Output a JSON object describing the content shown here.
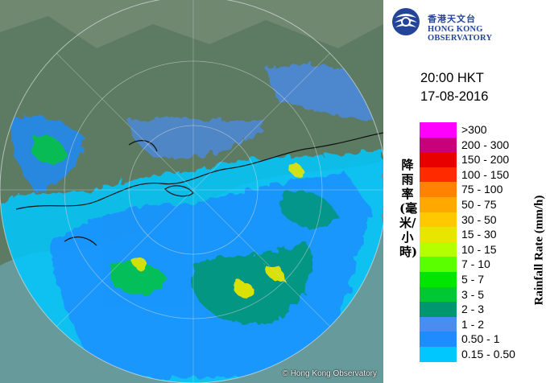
{
  "header": {
    "org_name_zh": "香港天文台",
    "org_name_en": "HONG KONG OBSERVATORY",
    "logo_icon": "hko-logo-icon"
  },
  "observation": {
    "time": "20:00 HKT",
    "date": "17-08-2016"
  },
  "map": {
    "copyright": "© Hong Kong Observatory",
    "land_color": "#5d7a63",
    "range_ring_color": "#d9dde0"
  },
  "legend": {
    "title_zh": "降雨率(毫米/小時)",
    "title_en": "Rainfall Rate (mm/h)",
    "items": [
      {
        "label": ">300",
        "color": "#ff00ff"
      },
      {
        "label": "200 - 300",
        "color": "#c8007a"
      },
      {
        "label": "150 - 200",
        "color": "#e80000"
      },
      {
        "label": "100 - 150",
        "color": "#ff2a00"
      },
      {
        "label": "75 - 100",
        "color": "#ff8200"
      },
      {
        "label": "50 - 75",
        "color": "#ffa800"
      },
      {
        "label": "30 - 50",
        "color": "#ffc800"
      },
      {
        "label": "15 - 30",
        "color": "#e6e600"
      },
      {
        "label": "10 - 15",
        "color": "#b4ff00"
      },
      {
        "label": "7 - 10",
        "color": "#5aff00"
      },
      {
        "label": "5 - 7",
        "color": "#00e600"
      },
      {
        "label": "3 - 5",
        "color": "#00c832"
      },
      {
        "label": "2 - 3",
        "color": "#00966e"
      },
      {
        "label": "1 - 2",
        "color": "#4a8cf0"
      },
      {
        "label": "0.50 - 1",
        "color": "#1e8cff"
      },
      {
        "label": "0.15 - 0.50",
        "color": "#00c8ff"
      }
    ]
  }
}
